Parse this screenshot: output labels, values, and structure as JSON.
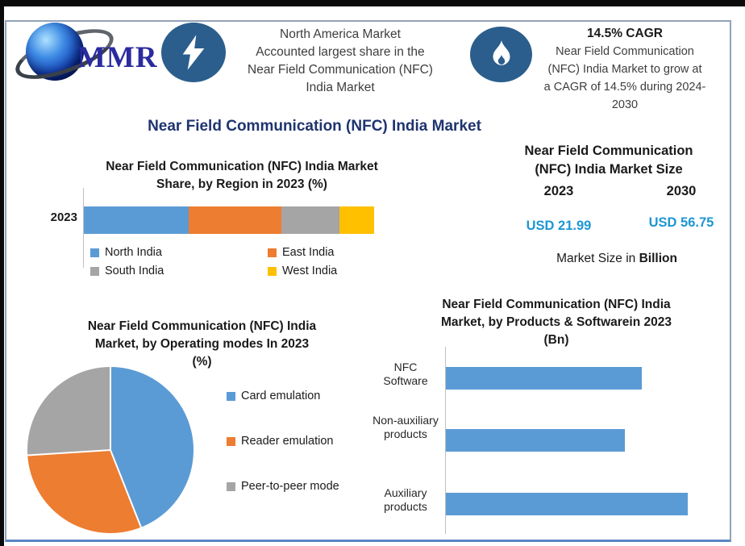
{
  "header": {
    "logo_text": "MMR",
    "fact1_lines": [
      "North America Market",
      "Accounted largest share in the",
      "Near Field Communication (NFC)",
      "India Market"
    ],
    "fact2_title": "14.5% CAGR",
    "fact2_lines": [
      "Near Field Communication",
      "(NFC) India Market to grow at",
      "a CAGR of 14.5% during 2024-",
      "2030"
    ]
  },
  "main_title": "Near Field Communication (NFC) India Market",
  "market_size": {
    "title_lines": [
      "Near Field Communication",
      "(NFC) India Market Size"
    ],
    "year_left": "2023",
    "year_right": "2030",
    "value_left": "USD 21.99",
    "value_right": "USD 56.75",
    "note_regular": "Market Size in ",
    "note_bold": "Billion"
  },
  "colors": {
    "badge_blue": "#2b5e8c",
    "title_navy": "#1f3470",
    "usd_blue": "#1d96d4",
    "series_blue": "#5B9BD5",
    "series_orange": "#ED7D31",
    "series_gray": "#A5A5A5",
    "series_yellow": "#FFC000"
  },
  "chart_data": [
    {
      "type": "bar",
      "subtype": "stacked-horizontal",
      "title": "Near Field Communication (NFC) India Market Share, by Region in 2023 (%)",
      "title_lines": [
        "Near Field Communication (NFC) India Market",
        "Share, by Region in 2023 (%)"
      ],
      "categories": [
        "2023"
      ],
      "series": [
        {
          "name": "North India",
          "color": "#5B9BD5",
          "values": [
            36
          ]
        },
        {
          "name": "East India",
          "color": "#ED7D31",
          "values": [
            32
          ]
        },
        {
          "name": "South India",
          "color": "#A5A5A5",
          "values": [
            20
          ]
        },
        {
          "name": "West India",
          "color": "#FFC000",
          "values": [
            12
          ]
        }
      ],
      "unit": "%",
      "value_axis_labeled": false,
      "legend_position": "bottom"
    },
    {
      "type": "pie",
      "title": "Near Field Communication (NFC) India Market, by Operating modes In 2023 (%)",
      "title_lines": [
        "Near Field Communication (NFC) India",
        "Market, by Operating modes In 2023",
        "(%)"
      ],
      "labels": [
        "Card emulation",
        "Reader emulation",
        "Peer-to-peer mode"
      ],
      "values": [
        44,
        30,
        26
      ],
      "colors": [
        "#5B9BD5",
        "#ED7D31",
        "#A5A5A5"
      ],
      "unit": "%",
      "start_angle_deg": 0,
      "legend_position": "right"
    },
    {
      "type": "bar",
      "subtype": "horizontal",
      "title": "Near Field Communication (NFC) India Market, by Products & Softwarein 2023 (Bn)",
      "title_lines": [
        "Near Field Communication (NFC) India",
        "Market, by Products & Softwarein 2023",
        "(Bn)"
      ],
      "categories": [
        "NFC Software",
        "Non-auxiliary products",
        "Auxiliary products"
      ],
      "values": [
        0.81,
        0.74,
        1.0
      ],
      "unit": "relative (no value axis labels shown)",
      "color": "#5B9BD5",
      "value_axis_labeled": false
    }
  ]
}
